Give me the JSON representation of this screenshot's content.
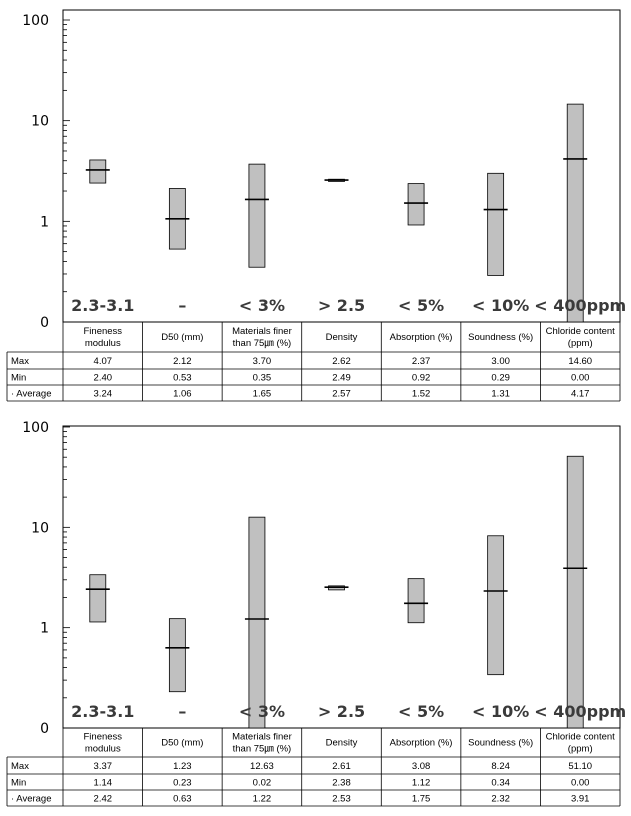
{
  "chart_data": [
    {
      "type": "box",
      "yscale": "log",
      "ylim": [
        0,
        100
      ],
      "yticks": [
        "100",
        "10",
        "1",
        "0"
      ],
      "grid": false,
      "categories": [
        "Fineness modulus",
        "D50 (mm)",
        "Materials finer than 75㎛ (%)",
        "Density",
        "Absorption (%)",
        "Soundness (%)",
        "Chloride content (ppm)"
      ],
      "header_lines": [
        [
          "Fineness",
          "modulus"
        ],
        [
          "D50 (mm)"
        ],
        [
          "Materials finer",
          "than 75㎛ (%)"
        ],
        [
          "Density"
        ],
        [
          "Absorption (%)"
        ],
        [
          "Soundness (%)"
        ],
        [
          "Chloride content",
          "(ppm)"
        ]
      ],
      "spec_labels": [
        "2.3-3.1",
        "–",
        "< 3%",
        "> 2.5",
        "< 5%",
        "< 10%",
        "< 400ppm"
      ],
      "row_labels": [
        "Max",
        "Min",
        "· Average"
      ],
      "max": [
        4.07,
        2.12,
        3.7,
        2.62,
        2.37,
        3.0,
        14.6
      ],
      "min": [
        2.4,
        0.53,
        0.35,
        2.49,
        0.92,
        0.29,
        0.0
      ],
      "average": [
        3.24,
        1.06,
        1.65,
        2.57,
        1.52,
        1.31,
        4.17
      ],
      "table": {
        "max": [
          "4.07",
          "2.12",
          "3.70",
          "2.62",
          "2.37",
          "3.00",
          "14.60"
        ],
        "min": [
          "2.40",
          "0.53",
          "0.35",
          "2.49",
          "0.92",
          "0.29",
          "0.00"
        ],
        "average": [
          "3.24",
          "1.06",
          "1.65",
          "2.57",
          "1.52",
          "1.31",
          "4.17"
        ]
      }
    },
    {
      "type": "box",
      "yscale": "log",
      "ylim": [
        0,
        100
      ],
      "yticks": [
        "100",
        "10",
        "1",
        "0"
      ],
      "grid": false,
      "categories": [
        "Fineness modulus",
        "D50 (mm)",
        "Materials finer than 75㎛ (%)",
        "Density",
        "Absorption (%)",
        "Soundness (%)",
        "Chloride content (ppm)"
      ],
      "header_lines": [
        [
          "Fineness",
          "modulus"
        ],
        [
          "D50 (mm)"
        ],
        [
          "Materials finer",
          "than 75㎛ (%)"
        ],
        [
          "Density"
        ],
        [
          "Absorption (%)"
        ],
        [
          "Soundness (%)"
        ],
        [
          "Chloride content",
          "(ppm)"
        ]
      ],
      "spec_labels": [
        "2.3-3.1",
        "–",
        "< 3%",
        "> 2.5",
        "< 5%",
        "< 10%",
        "< 400ppm"
      ],
      "row_labels": [
        "Max",
        "Min",
        "· Average"
      ],
      "max": [
        3.37,
        1.23,
        12.63,
        2.61,
        3.08,
        8.24,
        51.1
      ],
      "min": [
        1.14,
        0.23,
        0.02,
        2.38,
        1.12,
        0.34,
        0.0
      ],
      "average": [
        2.42,
        0.63,
        1.22,
        2.53,
        1.75,
        2.32,
        3.91
      ],
      "table": {
        "max": [
          "3.37",
          "1.23",
          "12.63",
          "2.61",
          "3.08",
          "8.24",
          "51.10"
        ],
        "min": [
          "1.14",
          "0.23",
          "0.02",
          "2.38",
          "1.12",
          "0.34",
          "0.00"
        ],
        "average": [
          "2.42",
          "0.63",
          "1.22",
          "2.53",
          "1.75",
          "2.32",
          "3.91"
        ]
      }
    }
  ]
}
